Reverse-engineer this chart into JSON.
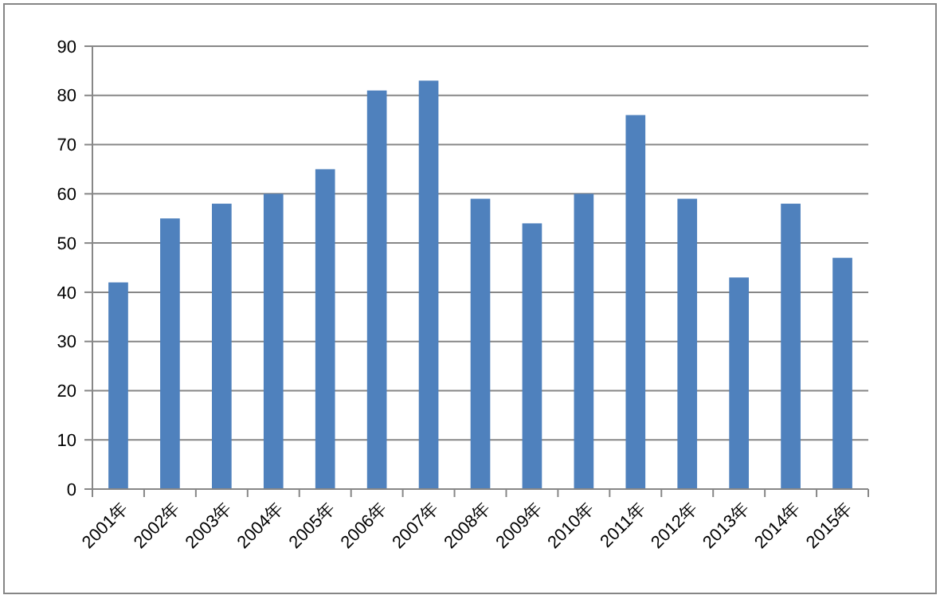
{
  "chart_data": {
    "type": "bar",
    "categories": [
      "2001年",
      "2002年",
      "2003年",
      "2004年",
      "2005年",
      "2006年",
      "2007年",
      "2008年",
      "2009年",
      "2010年",
      "2011年",
      "2012年",
      "2013年",
      "2014年",
      "2015年"
    ],
    "values": [
      42,
      55,
      58,
      60,
      65,
      81,
      83,
      59,
      54,
      60,
      76,
      59,
      43,
      58,
      47
    ],
    "color": "#4f81bd",
    "ylim": [
      0,
      90
    ],
    "yticks": [
      0,
      10,
      20,
      30,
      40,
      50,
      60,
      70,
      80,
      90
    ],
    "grid": "y"
  }
}
